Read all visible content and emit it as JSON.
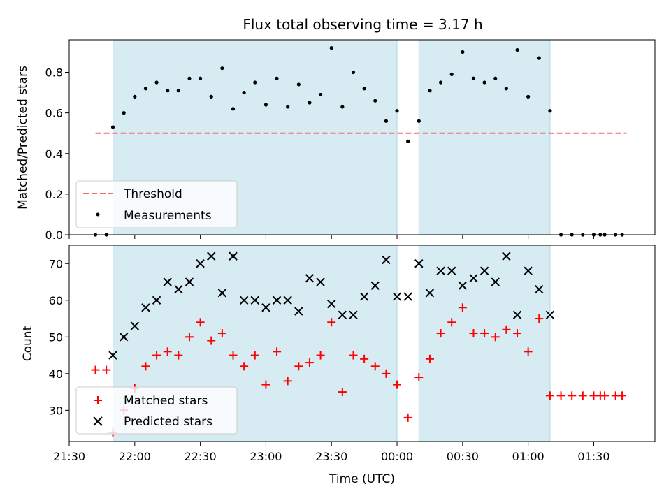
{
  "chart_data": {
    "title": "Flux total observing time = 3.17 h",
    "xlabel": "Time (UTC)",
    "x_axis": {
      "type": "time",
      "range": [
        "21:30",
        "01:58"
      ],
      "ticks": [
        "21:30",
        "22:00",
        "22:30",
        "23:00",
        "23:30",
        "00:00",
        "00:30",
        "01:00",
        "01:30"
      ]
    },
    "shaded_intervals": [
      {
        "start": "21:50",
        "end": "00:00"
      },
      {
        "start": "00:10",
        "end": "01:10"
      }
    ],
    "colors": {
      "shade": "#add8e6",
      "threshold": "#f07070",
      "matched": "#ff0000",
      "predicted": "#000000",
      "measurements": "#000000"
    },
    "panels": [
      {
        "type": "scatter",
        "ylabel": "Matched/Predicted stars",
        "ylim": [
          0,
          0.96
        ],
        "yticks": [
          "0.0",
          "0.2",
          "0.4",
          "0.6",
          "0.8"
        ],
        "legend_position": "lower-left",
        "threshold": {
          "name": "Threshold",
          "value": 0.5,
          "x_start": "21:42",
          "x_end": "01:45"
        },
        "series": [
          {
            "name": "Measurements",
            "x": [
              "21:42",
              "21:47",
              "21:50",
              "21:55",
              "22:00",
              "22:05",
              "22:10",
              "22:15",
              "22:20",
              "22:25",
              "22:30",
              "22:35",
              "22:40",
              "22:45",
              "22:50",
              "22:55",
              "23:00",
              "23:05",
              "23:10",
              "23:15",
              "23:20",
              "23:25",
              "23:30",
              "23:35",
              "23:40",
              "23:45",
              "23:50",
              "23:55",
              "00:00",
              "00:05",
              "00:10",
              "00:15",
              "00:20",
              "00:25",
              "00:30",
              "00:35",
              "00:40",
              "00:45",
              "00:50",
              "00:55",
              "01:00",
              "01:05",
              "01:10",
              "01:15",
              "01:20",
              "01:25",
              "01:30",
              "01:33",
              "01:35",
              "01:40",
              "01:43"
            ],
            "y": [
              0.0,
              0.0,
              0.53,
              0.6,
              0.68,
              0.72,
              0.75,
              0.71,
              0.71,
              0.77,
              0.77,
              0.68,
              0.82,
              0.62,
              0.7,
              0.75,
              0.64,
              0.77,
              0.63,
              0.74,
              0.65,
              0.69,
              0.92,
              0.63,
              0.8,
              0.72,
              0.66,
              0.56,
              0.61,
              0.46,
              0.56,
              0.71,
              0.75,
              0.79,
              0.9,
              0.77,
              0.75,
              0.77,
              0.72,
              0.91,
              0.68,
              0.87,
              0.61,
              0.0,
              0.0,
              0.0,
              0.0,
              0.0,
              0.0,
              0.0,
              0.0
            ]
          }
        ]
      },
      {
        "type": "scatter",
        "ylabel": "Count",
        "ylim": [
          21.5,
          75
        ],
        "yticks": [
          "30",
          "40",
          "50",
          "60",
          "70"
        ],
        "legend_position": "lower-left",
        "series": [
          {
            "name": "Matched stars",
            "marker": "plus",
            "x": [
              "21:42",
              "21:47",
              "21:50",
              "21:55",
              "22:00",
              "22:05",
              "22:10",
              "22:15",
              "22:20",
              "22:25",
              "22:30",
              "22:35",
              "22:40",
              "22:45",
              "22:50",
              "22:55",
              "23:00",
              "23:05",
              "23:10",
              "23:15",
              "23:20",
              "23:25",
              "23:30",
              "23:35",
              "23:40",
              "23:45",
              "23:50",
              "23:55",
              "00:00",
              "00:05",
              "00:10",
              "00:15",
              "00:20",
              "00:25",
              "00:30",
              "00:35",
              "00:40",
              "00:45",
              "00:50",
              "00:55",
              "01:00",
              "01:05",
              "01:10",
              "01:15",
              "01:20",
              "01:25",
              "01:30",
              "01:33",
              "01:35",
              "01:40",
              "01:43"
            ],
            "y": [
              41,
              41,
              24,
              30,
              36,
              42,
              45,
              46,
              45,
              50,
              54,
              49,
              51,
              45,
              42,
              45,
              37,
              46,
              38,
              42,
              43,
              45,
              54,
              35,
              45,
              44,
              42,
              40,
              37,
              28,
              39,
              44,
              51,
              54,
              58,
              51,
              51,
              50,
              52,
              51,
              46,
              55,
              34,
              34,
              34,
              34,
              34,
              34,
              34,
              34,
              34
            ]
          },
          {
            "name": "Predicted stars",
            "marker": "x",
            "x": [
              "21:50",
              "21:55",
              "22:00",
              "22:05",
              "22:10",
              "22:15",
              "22:20",
              "22:25",
              "22:30",
              "22:35",
              "22:40",
              "22:45",
              "22:50",
              "22:55",
              "23:00",
              "23:05",
              "23:10",
              "23:15",
              "23:20",
              "23:25",
              "23:30",
              "23:35",
              "23:40",
              "23:45",
              "23:50",
              "23:55",
              "00:00",
              "00:05",
              "00:10",
              "00:15",
              "00:20",
              "00:25",
              "00:30",
              "00:35",
              "00:40",
              "00:45",
              "00:50",
              "00:55",
              "01:00",
              "01:05",
              "01:10"
            ],
            "y": [
              45,
              50,
              53,
              58,
              60,
              65,
              63,
              65,
              70,
              72,
              62,
              72,
              60,
              60,
              58,
              60,
              60,
              57,
              66,
              65,
              59,
              56,
              56,
              61,
              64,
              71,
              61,
              61,
              70,
              62,
              68,
              68,
              64,
              66,
              68,
              65,
              72,
              56,
              68,
              63,
              56
            ]
          }
        ]
      }
    ]
  }
}
